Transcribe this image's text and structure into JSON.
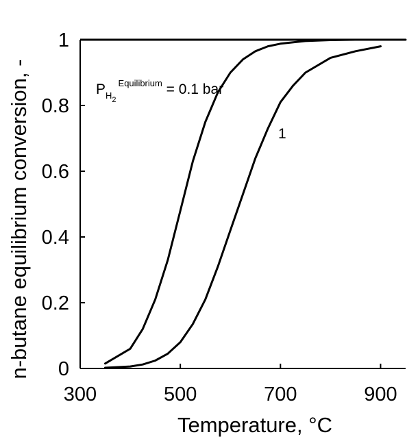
{
  "chart_data": {
    "type": "line",
    "title": "",
    "xlabel": "Temperature, °C",
    "ylabel": "n-butane equilibrium conversion, -",
    "xlim": [
      300,
      950
    ],
    "ylim": [
      0,
      1
    ],
    "xticks": [
      "300",
      "500",
      "700",
      "900"
    ],
    "xtick_values": [
      300,
      500,
      700,
      900
    ],
    "yticks": [
      "0",
      "0.2",
      "0.4",
      "0.6",
      "0.8",
      "1"
    ],
    "ytick_values": [
      0,
      0.2,
      0.4,
      0.6,
      0.8,
      1
    ],
    "grid": false,
    "series": [
      {
        "x": [
          350,
          400,
          425,
          450,
          475,
          500,
          525,
          550,
          575,
          600,
          625,
          650,
          675,
          700,
          750,
          800,
          850,
          900,
          950
        ],
        "y": [
          0.015,
          0.06,
          0.12,
          0.21,
          0.33,
          0.48,
          0.63,
          0.75,
          0.84,
          0.9,
          0.94,
          0.965,
          0.98,
          0.988,
          0.996,
          0.999,
          1.0,
          1.0,
          1.0
        ]
      },
      {
        "x": [
          350,
          400,
          425,
          450,
          475,
          500,
          525,
          550,
          575,
          600,
          625,
          650,
          675,
          700,
          725,
          750,
          800,
          850,
          900
        ],
        "y": [
          0.002,
          0.006,
          0.012,
          0.024,
          0.045,
          0.08,
          0.135,
          0.21,
          0.31,
          0.42,
          0.53,
          0.64,
          0.73,
          0.81,
          0.86,
          0.9,
          0.945,
          0.965,
          0.98
        ]
      }
    ],
    "annotations": {
      "series1_label": {
        "main": "P",
        "sub": "H",
        "subsub": "2",
        "sup": "Equilibrium",
        "rest": " = 0.1 bar"
      },
      "series2_label": "1"
    }
  }
}
